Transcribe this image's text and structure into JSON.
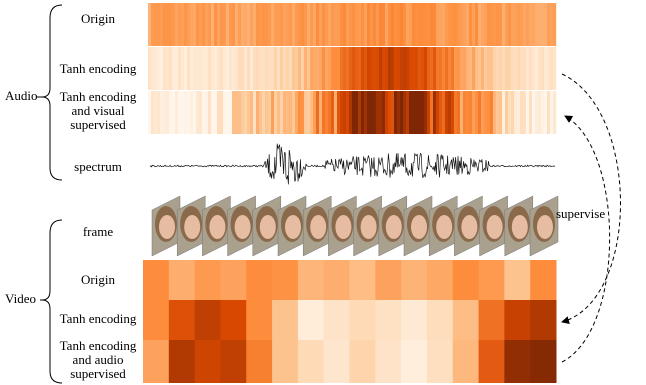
{
  "audio": {
    "label": "Audio",
    "rows": [
      [
        "Origin"
      ],
      [
        "Tanh encoding"
      ],
      [
        "Tanh encoding",
        "and visual",
        "supervised"
      ]
    ],
    "spectrum": "spectrum"
  },
  "video": {
    "label": "Video",
    "frame": "frame",
    "rows": [
      [
        "Origin"
      ],
      [
        "Tanh encoding"
      ],
      [
        "Tanh encoding",
        "and audio",
        "supervised"
      ]
    ]
  },
  "supervise": "supervise"
}
